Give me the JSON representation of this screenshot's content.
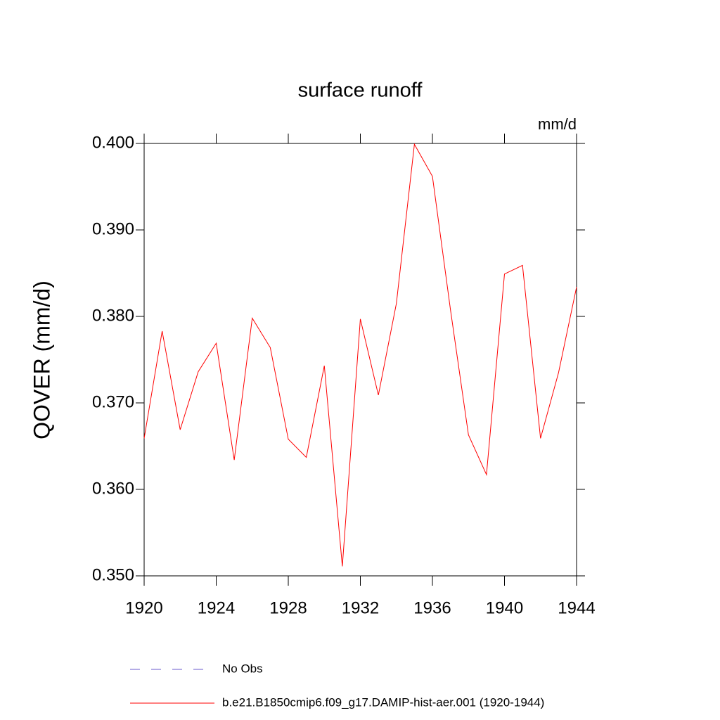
{
  "chart_data": {
    "type": "line",
    "title": "surface runoff",
    "units_label": "mm/d",
    "ylabel": "QOVER  (mm/d)",
    "x": [
      1920,
      1921,
      1922,
      1923,
      1924,
      1925,
      1926,
      1927,
      1928,
      1929,
      1930,
      1931,
      1932,
      1933,
      1934,
      1935,
      1936,
      1937,
      1938,
      1939,
      1940,
      1941,
      1942,
      1943,
      1944
    ],
    "series": [
      {
        "name": "No Obs",
        "color": "#6a5acd",
        "dashed": true
      },
      {
        "name": "b.e21.B1850cmip6.f09_g17.DAMIP-hist-aer.001 (1920-1944)",
        "color": "#ff0000",
        "dashed": false,
        "values": [
          0.3659,
          0.3783,
          0.3669,
          0.3736,
          0.3769,
          0.3634,
          0.3798,
          0.3764,
          0.3658,
          0.3637,
          0.3743,
          0.3511,
          0.3797,
          0.3709,
          0.3815,
          0.3999,
          0.3962,
          0.3808,
          0.3663,
          0.3617,
          0.3849,
          0.3859,
          0.3659,
          0.3735,
          0.3834
        ]
      }
    ],
    "xlim": [
      1920,
      1944
    ],
    "xticks": [
      1920,
      1924,
      1928,
      1932,
      1936,
      1940,
      1944
    ],
    "ylim": [
      0.35,
      0.4
    ],
    "yticks": [
      {
        "value": 0.35,
        "label": "0.350"
      },
      {
        "value": 0.36,
        "label": "0.360"
      },
      {
        "value": 0.37,
        "label": "0.370"
      },
      {
        "value": 0.38,
        "label": "0.380"
      },
      {
        "value": 0.39,
        "label": "0.390"
      },
      {
        "value": 0.4,
        "label": "0.400"
      }
    ]
  }
}
